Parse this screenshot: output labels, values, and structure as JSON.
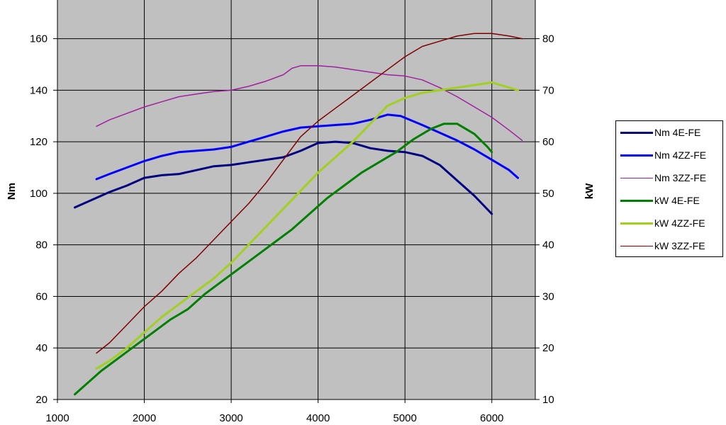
{
  "chart_data": {
    "type": "line",
    "title": "",
    "xlabel": "",
    "ylabel_left": "Nm",
    "ylabel_right": "kW",
    "xlim": [
      1000,
      6500
    ],
    "xticks": [
      1000,
      2000,
      3000,
      4000,
      5000,
      6000
    ],
    "ylim_left": [
      20,
      175
    ],
    "yticks_left": [
      20,
      40,
      60,
      80,
      100,
      120,
      140,
      160
    ],
    "ylim_right": [
      10,
      87.5
    ],
    "yticks_right": [
      10,
      20,
      30,
      40,
      50,
      60,
      70,
      80
    ],
    "grid": true,
    "background": "#c0c0c0",
    "legend_position": "right",
    "series": [
      {
        "name": "Nm 4E-FE",
        "axis": "left",
        "color": "#000080",
        "width": 3,
        "x": [
          1200,
          1400,
          1600,
          1800,
          2000,
          2200,
          2400,
          2600,
          2800,
          3000,
          3200,
          3400,
          3600,
          3800,
          4000,
          4200,
          4400,
          4600,
          4800,
          5000,
          5200,
          5400,
          5600,
          5800,
          6000
        ],
        "y": [
          94.5,
          97.5,
          100.5,
          103,
          106,
          107,
          107.5,
          109,
          110.5,
          111,
          112,
          113,
          114,
          116.5,
          119.5,
          120,
          119.5,
          117.5,
          116.5,
          116,
          114.5,
          111,
          105,
          99,
          92
        ]
      },
      {
        "name": "Nm 4ZZ-FE",
        "axis": "left",
        "color": "#0000ff",
        "width": 3,
        "x": [
          1450,
          1600,
          1800,
          2000,
          2200,
          2400,
          2600,
          2800,
          3000,
          3200,
          3400,
          3600,
          3800,
          4000,
          4200,
          4400,
          4600,
          4800,
          4950,
          5200,
          5400,
          5600,
          5800,
          6000,
          6200,
          6300
        ],
        "y": [
          105.5,
          107.5,
          110,
          112.5,
          114.5,
          116,
          116.5,
          117,
          118,
          120,
          122,
          124,
          125.5,
          126,
          126.5,
          127,
          128.5,
          130.5,
          130,
          126.5,
          123.5,
          120.5,
          117,
          113,
          109,
          106
        ]
      },
      {
        "name": "Nm 3ZZ-FE",
        "axis": "left",
        "color": "#a020a0",
        "width": 1.5,
        "x": [
          1450,
          1600,
          1800,
          2000,
          2200,
          2400,
          2600,
          2800,
          3000,
          3200,
          3400,
          3600,
          3700,
          3800,
          4000,
          4200,
          4400,
          4600,
          4800,
          5000,
          5200,
          5400,
          5600,
          5800,
          6000,
          6200,
          6350
        ],
        "y": [
          126,
          128.5,
          131,
          133.5,
          135.5,
          137.5,
          138.5,
          139.5,
          140,
          141.5,
          143.5,
          146,
          148.5,
          149.5,
          149.5,
          149,
          148,
          147,
          146,
          145.5,
          144,
          141,
          137.5,
          133.5,
          129.5,
          124.5,
          120.5
        ]
      },
      {
        "name": "kW 4E-FE",
        "axis": "right",
        "color": "#008000",
        "width": 3,
        "x": [
          1200,
          1300,
          1500,
          1700,
          1900,
          2100,
          2300,
          2500,
          2700,
          2900,
          3100,
          3300,
          3500,
          3700,
          3900,
          4100,
          4300,
          4500,
          4700,
          4900,
          5100,
          5300,
          5450,
          5600,
          5800,
          5950,
          6000
        ],
        "y": [
          11,
          12.5,
          15.5,
          18,
          20.5,
          23,
          25.5,
          27.5,
          30.5,
          33,
          35.5,
          38,
          40.5,
          43,
          46,
          49,
          51.5,
          54,
          56,
          58,
          60.5,
          62.5,
          63.5,
          63.5,
          61.5,
          59,
          58
        ]
      },
      {
        "name": "kW 4ZZ-FE",
        "axis": "right",
        "color": "#a0d020",
        "width": 3,
        "x": [
          1450,
          1600,
          1800,
          2000,
          2200,
          2400,
          2600,
          2800,
          3000,
          3200,
          3400,
          3600,
          3800,
          4000,
          4200,
          4400,
          4600,
          4800,
          5000,
          5200,
          5400,
          5600,
          5800,
          6000,
          6300
        ],
        "y": [
          16,
          17.5,
          20,
          23,
          26,
          28.5,
          31,
          33.5,
          36.5,
          40,
          43.5,
          47,
          50.5,
          54,
          57,
          60,
          63.5,
          67,
          68.5,
          69.5,
          70,
          70.5,
          71,
          71.5,
          70
        ]
      },
      {
        "name": "kW 3ZZ-FE",
        "axis": "right",
        "color": "#800000",
        "width": 1.5,
        "x": [
          1450,
          1600,
          1800,
          2000,
          2200,
          2400,
          2600,
          2800,
          3000,
          3200,
          3400,
          3600,
          3800,
          4000,
          4200,
          4400,
          4600,
          4800,
          5000,
          5200,
          5400,
          5600,
          5800,
          6000,
          6200,
          6350
        ],
        "y": [
          19,
          21,
          24.5,
          28,
          31,
          34.5,
          37.5,
          41,
          44.5,
          48,
          52,
          56.5,
          61,
          64,
          66.5,
          69,
          71.5,
          74,
          76.5,
          78.5,
          79.5,
          80.5,
          81,
          81,
          80.5,
          80
        ]
      }
    ]
  }
}
